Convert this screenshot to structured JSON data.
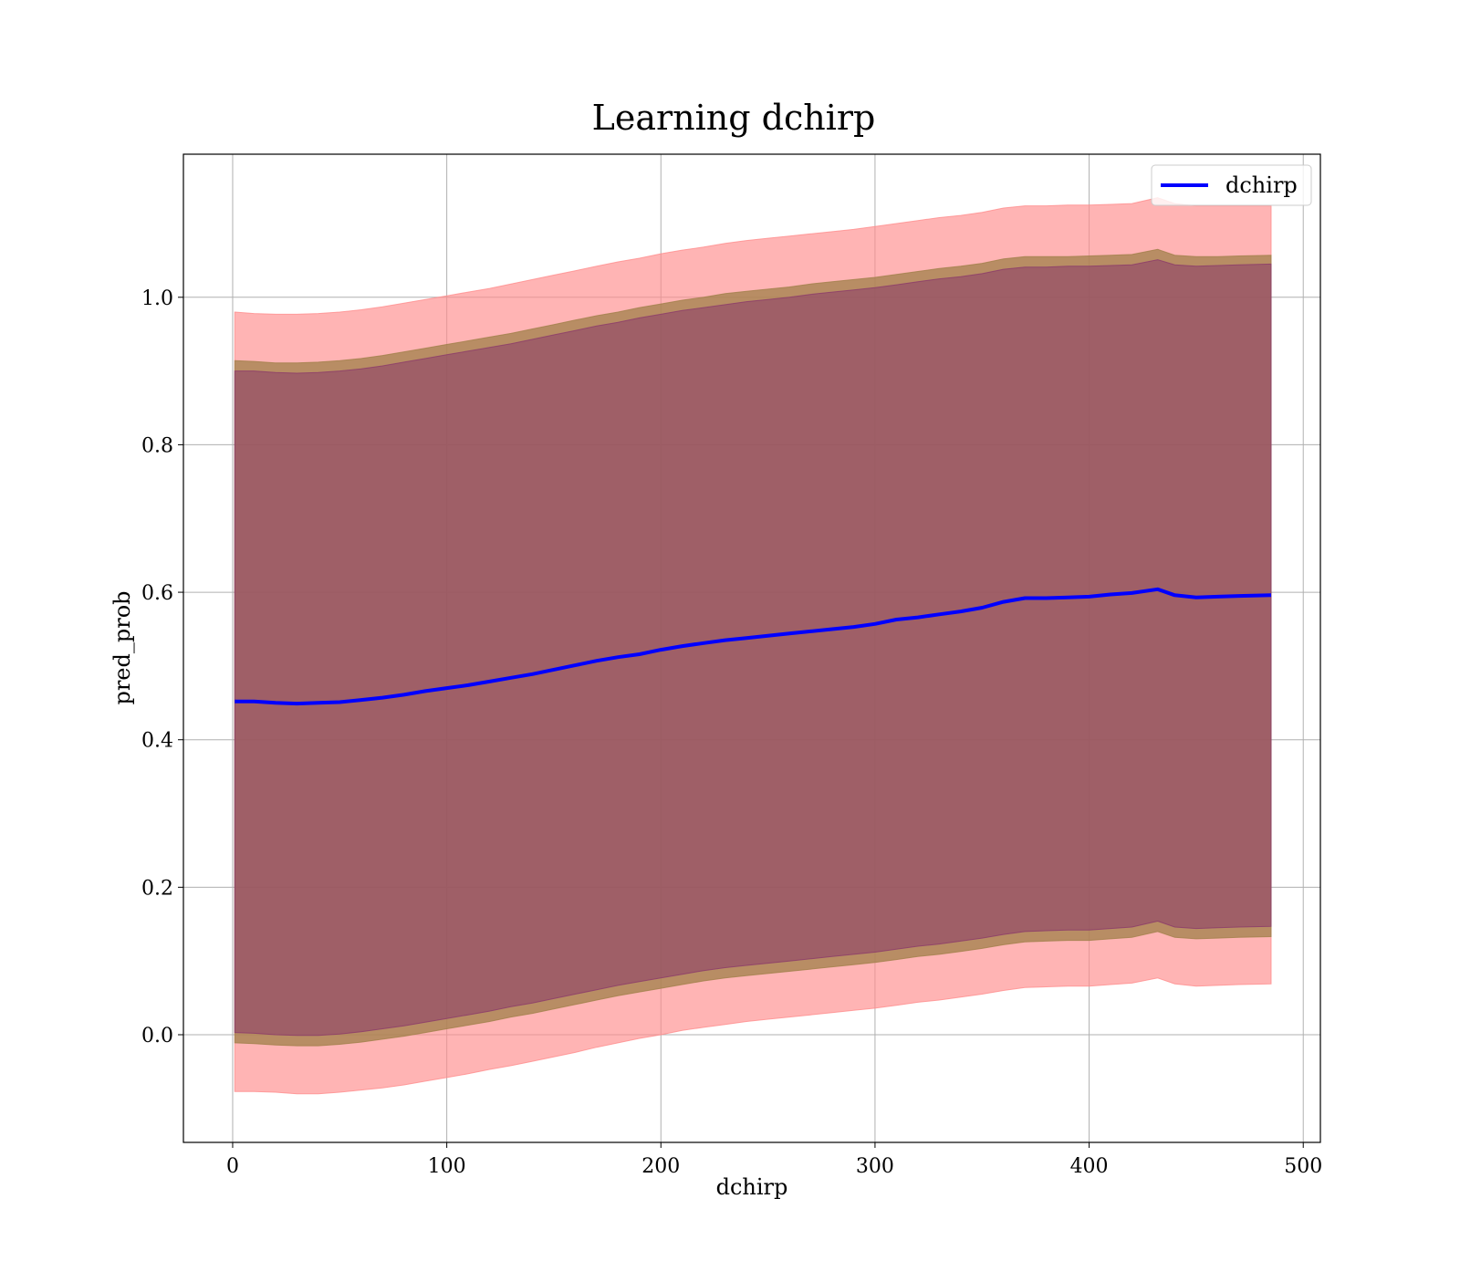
{
  "chart_data": {
    "type": "line",
    "title": "Learning dchirp",
    "xlabel": "dchirp",
    "ylabel": "pred_prob",
    "xlim": [
      -23,
      508
    ],
    "ylim": [
      -0.146,
      1.194
    ],
    "xticks": [
      0,
      100,
      200,
      300,
      400,
      500
    ],
    "yticks": [
      0.0,
      0.2,
      0.4,
      0.6,
      0.8,
      1.0
    ],
    "x_tick_labels": [
      "0",
      "100",
      "200",
      "300",
      "400",
      "500"
    ],
    "y_tick_labels": [
      "0.0",
      "0.2",
      "0.4",
      "0.6",
      "0.8",
      "1.0"
    ],
    "grid": true,
    "legend": {
      "position": "top-right",
      "entries": [
        {
          "label": "dchirp",
          "color": "#0000ff"
        }
      ]
    },
    "colors": {
      "line": "#0000ff",
      "band_outer": "#ff8c8c",
      "band_middle": "#a0804a",
      "band_inner": "#8b3a6a",
      "grid": "#b0b0b0"
    },
    "x": [
      1,
      10,
      20,
      30,
      40,
      50,
      60,
      70,
      80,
      90,
      100,
      110,
      120,
      130,
      140,
      150,
      160,
      170,
      180,
      190,
      200,
      210,
      220,
      230,
      240,
      250,
      260,
      270,
      280,
      290,
      300,
      310,
      320,
      330,
      340,
      350,
      360,
      370,
      380,
      390,
      400,
      410,
      420,
      432,
      440,
      450,
      460,
      470,
      485
    ],
    "series": [
      {
        "name": "dchirp",
        "values": [
          0.452,
          0.452,
          0.45,
          0.449,
          0.45,
          0.451,
          0.454,
          0.457,
          0.461,
          0.466,
          0.47,
          0.474,
          0.479,
          0.484,
          0.489,
          0.495,
          0.501,
          0.507,
          0.512,
          0.516,
          0.522,
          0.527,
          0.531,
          0.535,
          0.538,
          0.541,
          0.544,
          0.547,
          0.55,
          0.553,
          0.557,
          0.563,
          0.566,
          0.57,
          0.574,
          0.579,
          0.587,
          0.592,
          0.592,
          0.593,
          0.594,
          0.597,
          0.599,
          0.604,
          0.596,
          0.593,
          0.594,
          0.595,
          0.596
        ]
      }
    ],
    "bands": [
      {
        "level": "outer",
        "upper": [
          0.98,
          0.978,
          0.977,
          0.977,
          0.978,
          0.98,
          0.983,
          0.987,
          0.992,
          0.997,
          1.002,
          1.007,
          1.012,
          1.018,
          1.024,
          1.03,
          1.036,
          1.042,
          1.048,
          1.053,
          1.059,
          1.064,
          1.068,
          1.073,
          1.077,
          1.08,
          1.083,
          1.086,
          1.089,
          1.092,
          1.096,
          1.1,
          1.104,
          1.108,
          1.111,
          1.115,
          1.121,
          1.124,
          1.124,
          1.125,
          1.125,
          1.126,
          1.127,
          1.135,
          1.127,
          1.124,
          1.124,
          1.124,
          1.124
        ],
        "lower": [
          -0.077,
          -0.077,
          -0.078,
          -0.08,
          -0.08,
          -0.078,
          -0.075,
          -0.072,
          -0.068,
          -0.063,
          -0.058,
          -0.053,
          -0.047,
          -0.042,
          -0.036,
          -0.03,
          -0.024,
          -0.017,
          -0.011,
          -0.005,
          0.0,
          0.006,
          0.01,
          0.014,
          0.018,
          0.021,
          0.024,
          0.027,
          0.03,
          0.033,
          0.036,
          0.04,
          0.044,
          0.047,
          0.051,
          0.055,
          0.06,
          0.064,
          0.065,
          0.066,
          0.066,
          0.068,
          0.07,
          0.077,
          0.069,
          0.066,
          0.067,
          0.068,
          0.069
        ]
      },
      {
        "level": "middle",
        "upper": [
          0.914,
          0.913,
          0.911,
          0.911,
          0.912,
          0.914,
          0.917,
          0.921,
          0.926,
          0.931,
          0.936,
          0.941,
          0.946,
          0.951,
          0.957,
          0.963,
          0.969,
          0.975,
          0.98,
          0.986,
          0.991,
          0.996,
          1.0,
          1.005,
          1.008,
          1.011,
          1.014,
          1.018,
          1.021,
          1.024,
          1.027,
          1.031,
          1.035,
          1.039,
          1.042,
          1.046,
          1.052,
          1.055,
          1.055,
          1.055,
          1.056,
          1.057,
          1.058,
          1.065,
          1.057,
          1.055,
          1.055,
          1.056,
          1.057
        ],
        "lower": [
          -0.011,
          -0.012,
          -0.014,
          -0.015,
          -0.015,
          -0.013,
          -0.01,
          -0.006,
          -0.002,
          0.003,
          0.008,
          0.013,
          0.018,
          0.024,
          0.029,
          0.035,
          0.041,
          0.047,
          0.053,
          0.058,
          0.063,
          0.068,
          0.073,
          0.077,
          0.08,
          0.083,
          0.086,
          0.089,
          0.092,
          0.095,
          0.098,
          0.102,
          0.106,
          0.109,
          0.113,
          0.117,
          0.122,
          0.126,
          0.127,
          0.128,
          0.128,
          0.13,
          0.132,
          0.14,
          0.132,
          0.13,
          0.131,
          0.132,
          0.133
        ]
      },
      {
        "level": "inner",
        "upper": [
          0.9,
          0.9,
          0.898,
          0.897,
          0.898,
          0.9,
          0.903,
          0.907,
          0.912,
          0.917,
          0.922,
          0.927,
          0.932,
          0.937,
          0.943,
          0.949,
          0.955,
          0.961,
          0.966,
          0.972,
          0.977,
          0.982,
          0.986,
          0.99,
          0.994,
          0.997,
          1.0,
          1.004,
          1.007,
          1.01,
          1.013,
          1.017,
          1.021,
          1.025,
          1.028,
          1.032,
          1.038,
          1.041,
          1.041,
          1.042,
          1.042,
          1.043,
          1.044,
          1.051,
          1.044,
          1.042,
          1.043,
          1.044,
          1.045
        ],
        "lower": [
          0.003,
          0.002,
          0.0,
          -0.001,
          -0.001,
          0.001,
          0.004,
          0.008,
          0.012,
          0.017,
          0.022,
          0.027,
          0.032,
          0.038,
          0.043,
          0.049,
          0.055,
          0.061,
          0.067,
          0.072,
          0.077,
          0.082,
          0.087,
          0.091,
          0.094,
          0.097,
          0.1,
          0.103,
          0.106,
          0.109,
          0.112,
          0.116,
          0.12,
          0.123,
          0.127,
          0.131,
          0.136,
          0.14,
          0.141,
          0.142,
          0.142,
          0.144,
          0.146,
          0.154,
          0.146,
          0.144,
          0.145,
          0.146,
          0.147
        ]
      }
    ]
  }
}
